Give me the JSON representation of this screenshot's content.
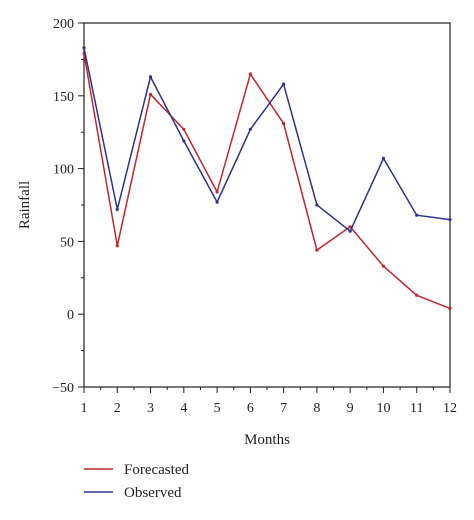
{
  "chart_data": {
    "type": "line",
    "title": "",
    "xlabel": "Months",
    "ylabel": "Rainfall",
    "x": [
      1,
      2,
      3,
      4,
      5,
      6,
      7,
      8,
      9,
      10,
      11,
      12
    ],
    "xlim": [
      1,
      12
    ],
    "ylim": [
      -50,
      200
    ],
    "yticks": [
      -50,
      0,
      50,
      100,
      150,
      200
    ],
    "ytick_labels": [
      "−50",
      "0",
      "50",
      "100",
      "150",
      "200"
    ],
    "grid": false,
    "legend_position": "bottom-left",
    "series": [
      {
        "name": "Forecasted",
        "color": "#c1272d",
        "values": [
          179,
          47,
          151,
          127,
          84,
          165,
          131,
          44,
          60,
          33,
          13,
          4
        ]
      },
      {
        "name": "Observed",
        "color": "#2e3192",
        "values": [
          183,
          72,
          163,
          119,
          77,
          127,
          158,
          75,
          57,
          107,
          68,
          65
        ]
      }
    ]
  }
}
